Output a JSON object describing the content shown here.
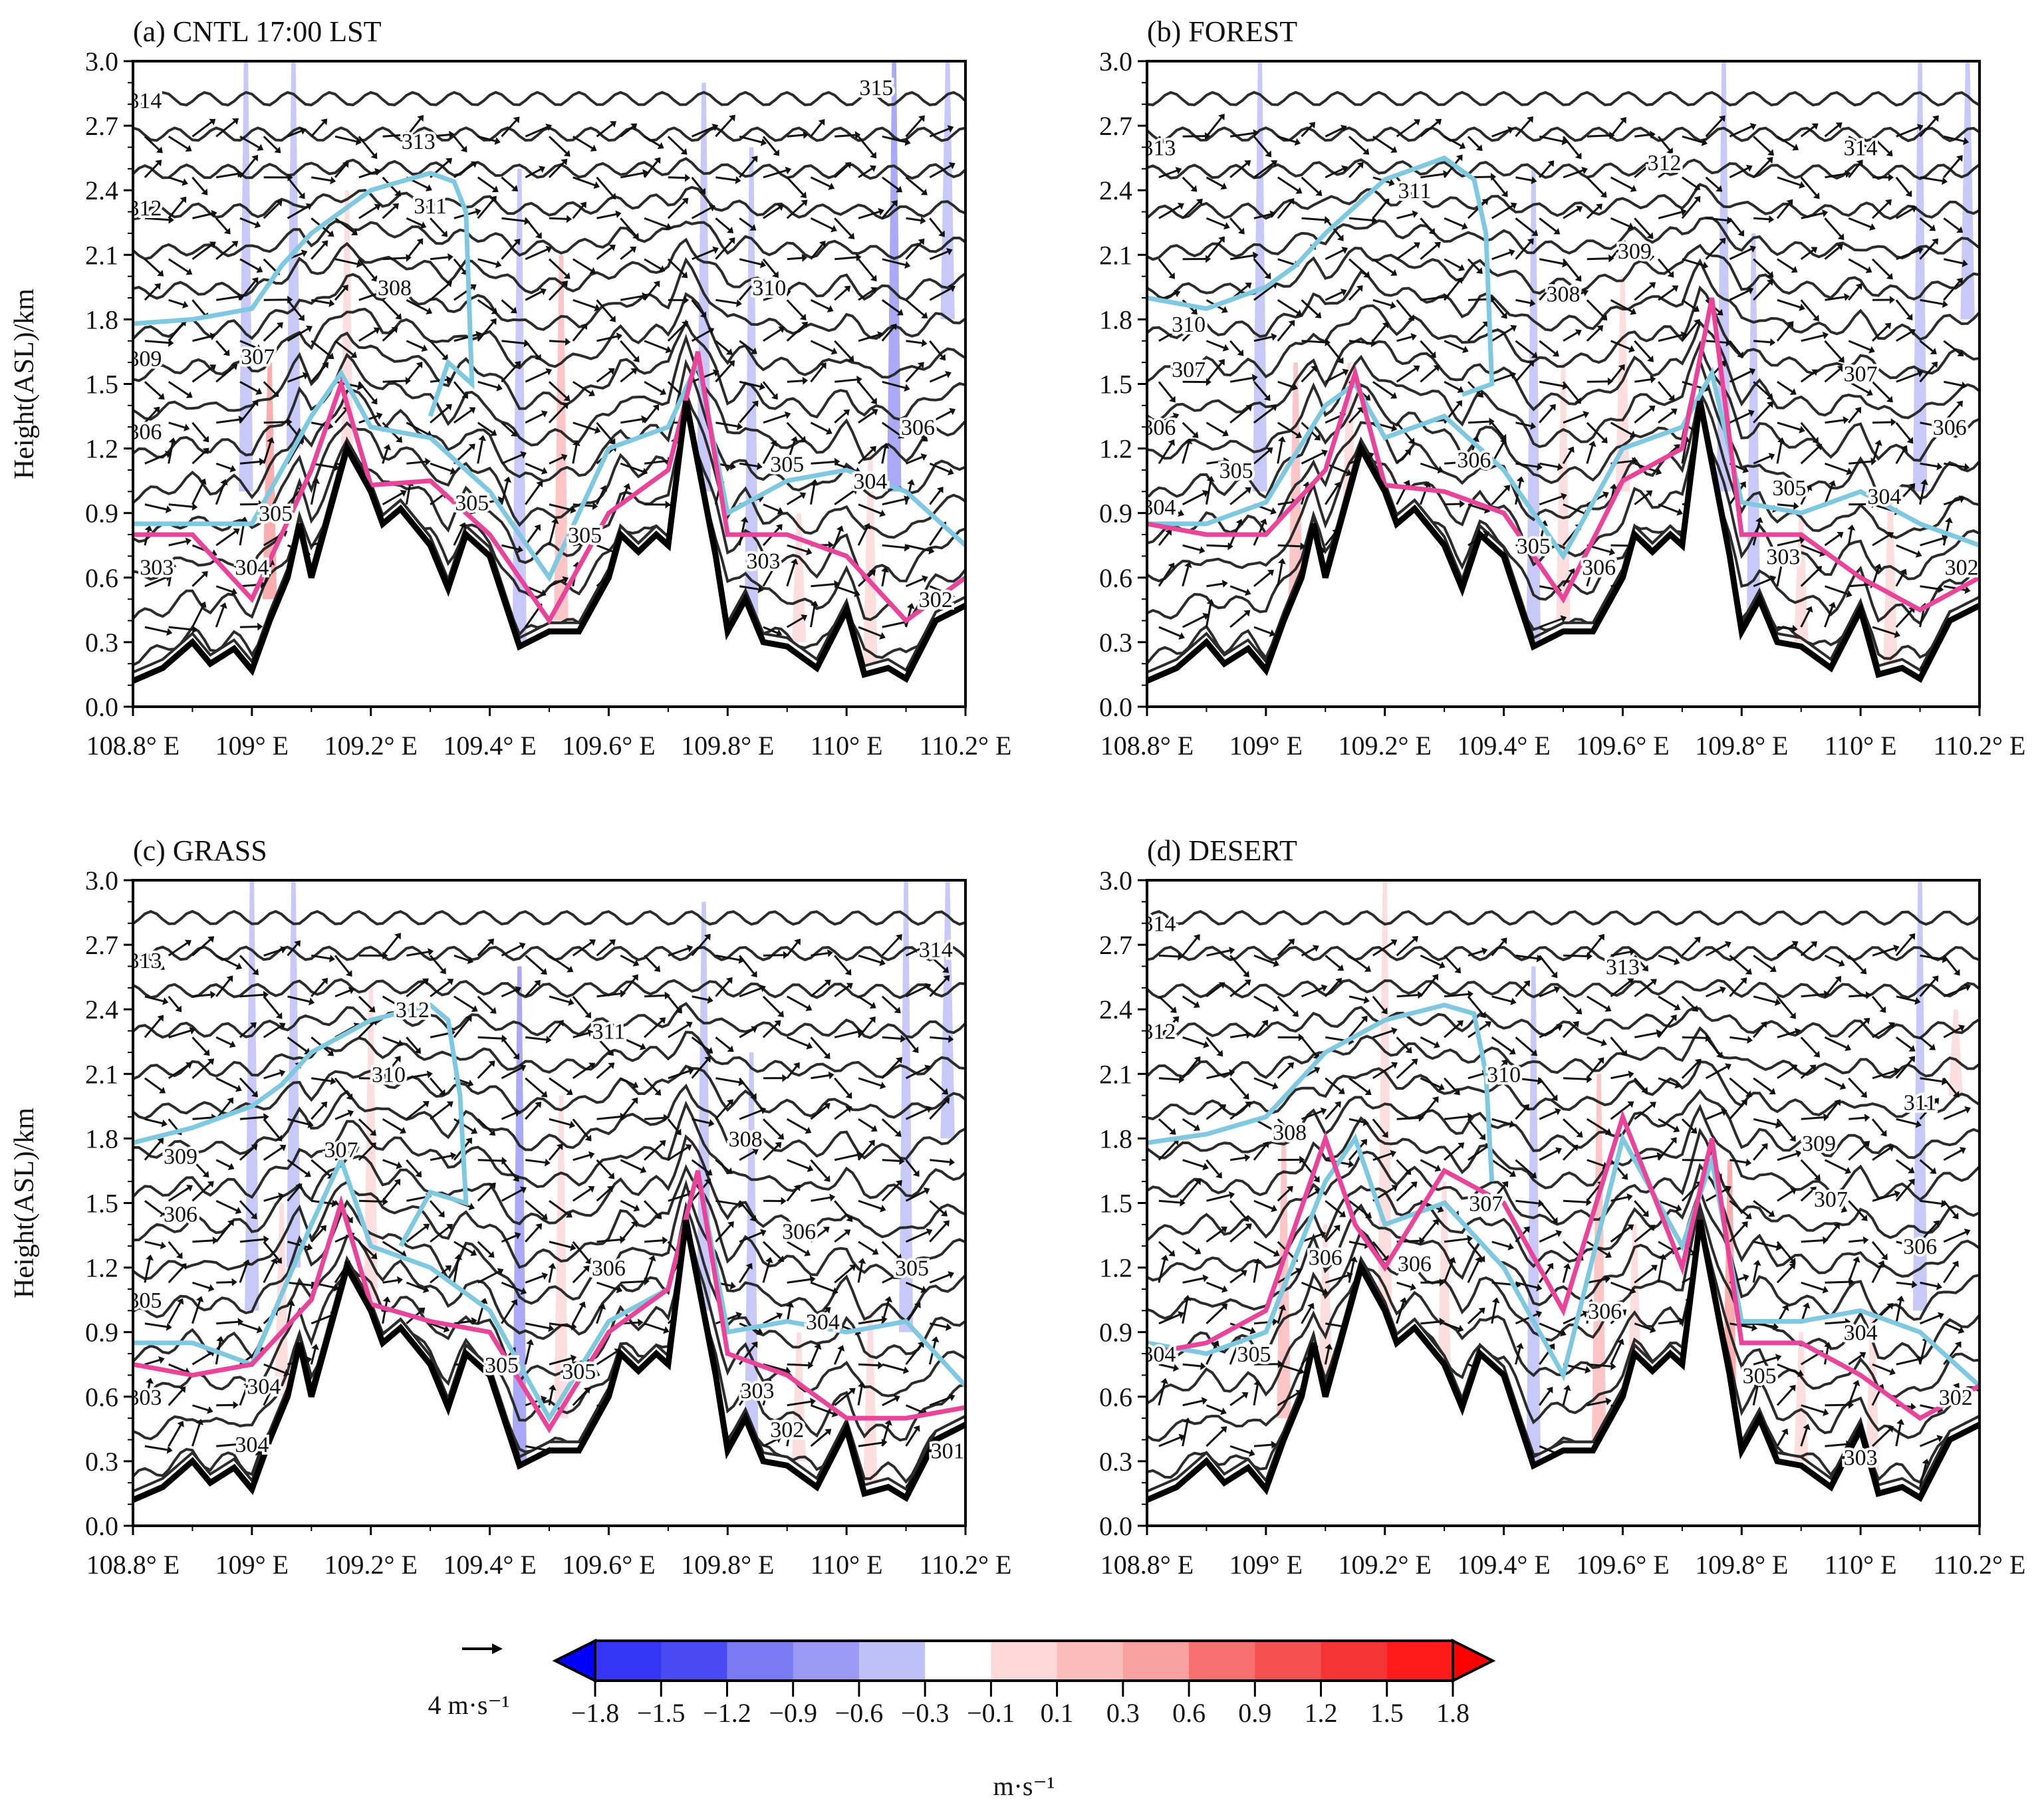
{
  "chart_data": {
    "type": "cross-section",
    "ylabel": "Height(ASL)/km",
    "ylim": [
      0,
      3.0
    ],
    "xlim": [
      108.8,
      110.2
    ],
    "yticks": [
      "0.0",
      "0.3",
      "0.6",
      "0.9",
      "1.2",
      "1.5",
      "1.8",
      "2.1",
      "2.4",
      "2.7",
      "3.0"
    ],
    "xticks": [
      "108.8° E",
      "109° E",
      "109.2° E",
      "109.4° E",
      "109.6° E",
      "109.8° E",
      "110° E",
      "110.2° E"
    ],
    "terrain": {
      "lon": [
        108.8,
        108.85,
        108.9,
        108.93,
        108.97,
        109.0,
        109.03,
        109.06,
        109.08,
        109.1,
        109.13,
        109.16,
        109.2,
        109.22,
        109.25,
        109.3,
        109.33,
        109.36,
        109.4,
        109.45,
        109.5,
        109.55,
        109.6,
        109.62,
        109.65,
        109.68,
        109.7,
        109.73,
        109.78,
        109.8,
        109.83,
        109.86,
        109.9,
        109.95,
        110.0,
        110.03,
        110.07,
        110.1,
        110.15,
        110.2
      ],
      "height": [
        0.12,
        0.18,
        0.3,
        0.2,
        0.27,
        0.17,
        0.4,
        0.6,
        0.85,
        0.6,
        0.9,
        1.2,
        1.0,
        0.85,
        0.92,
        0.75,
        0.55,
        0.8,
        0.7,
        0.28,
        0.35,
        0.35,
        0.6,
        0.8,
        0.72,
        0.8,
        0.75,
        1.42,
        0.7,
        0.35,
        0.5,
        0.3,
        0.28,
        0.18,
        0.45,
        0.15,
        0.18,
        0.13,
        0.4,
        0.47
      ]
    },
    "line_lon": [
      108.8,
      108.9,
      109.0,
      109.1,
      109.15,
      109.2,
      109.3,
      109.4,
      109.5,
      109.6,
      109.7,
      109.75,
      109.8,
      109.9,
      110.0,
      110.1,
      110.2
    ],
    "panels": [
      {
        "title": "(a) CNTL 17:00 LST",
        "cyan": [
          0.85,
          0.85,
          0.85,
          1.35,
          1.55,
          1.3,
          1.25,
          1.0,
          0.6,
          1.2,
          1.3,
          1.6,
          0.9,
          1.05,
          1.1,
          1.0,
          0.75
        ],
        "pink": [
          0.8,
          0.8,
          0.5,
          1.1,
          1.5,
          1.0,
          1.05,
          0.8,
          0.4,
          0.9,
          1.1,
          1.65,
          0.8,
          0.8,
          0.7,
          0.4,
          0.6
        ],
        "cyan_upper": [
          [
            108.8,
            1.78
          ],
          [
            108.9,
            1.8
          ],
          [
            109.0,
            1.85
          ],
          [
            109.05,
            2.05
          ],
          [
            109.1,
            2.2
          ],
          [
            109.2,
            2.4
          ],
          [
            109.3,
            2.48
          ],
          [
            109.34,
            2.44
          ],
          [
            109.36,
            2.3
          ],
          [
            109.37,
            1.5
          ],
          [
            109.33,
            1.6
          ],
          [
            109.3,
            1.35
          ]
        ],
        "shading": [
          [
            108.99,
            1.0,
            3.0,
            -0.3
          ],
          [
            109.03,
            0.5,
            1.6,
            0.9
          ],
          [
            109.07,
            1.2,
            3.0,
            -0.3
          ],
          [
            109.16,
            0.9,
            2.4,
            0.3
          ],
          [
            109.45,
            0.3,
            2.5,
            -0.3
          ],
          [
            109.52,
            0.4,
            2.1,
            0.6
          ],
          [
            109.76,
            1.0,
            2.9,
            -0.3
          ],
          [
            109.84,
            0.3,
            2.6,
            -0.3
          ],
          [
            109.92,
            0.3,
            0.9,
            0.3
          ],
          [
            110.04,
            0.2,
            1.2,
            0.3
          ],
          [
            110.08,
            1.0,
            3.0,
            -0.6
          ],
          [
            110.17,
            1.8,
            3.0,
            -0.3
          ]
        ],
        "labels": [
          [
            "314",
            108.82,
            2.82
          ],
          [
            "315",
            110.05,
            2.88
          ],
          [
            "313",
            109.28,
            2.63
          ],
          [
            "312",
            108.82,
            2.32
          ],
          [
            "311",
            109.3,
            2.33
          ],
          [
            "310",
            109.87,
            1.95
          ],
          [
            "308",
            109.24,
            1.95
          ],
          [
            "309",
            108.82,
            1.62
          ],
          [
            "307",
            109.01,
            1.63
          ],
          [
            "306",
            108.82,
            1.28
          ],
          [
            "306",
            110.12,
            1.3
          ],
          [
            "305",
            109.9,
            1.13
          ],
          [
            "304",
            110.04,
            1.05
          ],
          [
            "305",
            109.04,
            0.9
          ],
          [
            "305",
            109.37,
            0.95
          ],
          [
            "305",
            109.56,
            0.8
          ],
          [
            "303",
            108.84,
            0.65
          ],
          [
            "304",
            109.0,
            0.65
          ],
          [
            "303",
            109.86,
            0.68
          ],
          [
            "302",
            110.15,
            0.5
          ]
        ]
      },
      {
        "title": "(b) FOREST",
        "cyan": [
          0.85,
          0.85,
          0.95,
          1.4,
          1.5,
          1.25,
          1.35,
          1.1,
          0.7,
          1.2,
          1.3,
          1.55,
          0.95,
          0.9,
          1.0,
          0.85,
          0.75
        ],
        "pink": [
          0.85,
          0.8,
          0.8,
          1.1,
          1.55,
          1.0,
          1.0,
          0.9,
          0.5,
          1.05,
          1.2,
          1.9,
          0.8,
          0.8,
          0.6,
          0.45,
          0.6
        ],
        "cyan_upper": [
          [
            108.8,
            1.9
          ],
          [
            108.9,
            1.85
          ],
          [
            109.0,
            1.95
          ],
          [
            109.05,
            2.05
          ],
          [
            109.1,
            2.2
          ],
          [
            109.2,
            2.45
          ],
          [
            109.3,
            2.55
          ],
          [
            109.35,
            2.45
          ],
          [
            109.37,
            2.2
          ],
          [
            109.38,
            1.5
          ],
          [
            109.33,
            1.45
          ]
        ],
        "shading": [
          [
            108.99,
            1.0,
            3.0,
            -0.3
          ],
          [
            109.05,
            0.5,
            1.6,
            0.6
          ],
          [
            109.14,
            0.8,
            1.6,
            0.3
          ],
          [
            109.45,
            0.3,
            2.5,
            -0.3
          ],
          [
            109.5,
            0.4,
            1.6,
            0.3
          ],
          [
            109.6,
            1.0,
            2.0,
            0.3
          ],
          [
            109.77,
            1.0,
            3.0,
            -0.3
          ],
          [
            109.82,
            0.3,
            2.2,
            -0.3
          ],
          [
            109.9,
            0.3,
            0.9,
            0.3
          ],
          [
            110.05,
            0.2,
            1.0,
            0.3
          ],
          [
            110.1,
            1.0,
            3.0,
            -0.3
          ],
          [
            110.18,
            1.8,
            3.0,
            -0.3
          ]
        ],
        "labels": [
          [
            "313",
            108.82,
            2.6
          ],
          [
            "314",
            110.0,
            2.6
          ],
          [
            "312",
            109.67,
            2.53
          ],
          [
            "311",
            109.25,
            2.4
          ],
          [
            "309",
            109.62,
            2.12
          ],
          [
            "310",
            108.87,
            1.78
          ],
          [
            "308",
            109.5,
            1.92
          ],
          [
            "307",
            108.87,
            1.57
          ],
          [
            "307",
            110.0,
            1.55
          ],
          [
            "306",
            108.82,
            1.3
          ],
          [
            "306",
            110.15,
            1.3
          ],
          [
            "305",
            108.95,
            1.1
          ],
          [
            "306",
            109.35,
            1.15
          ],
          [
            "305",
            109.88,
            1.02
          ],
          [
            "304",
            110.04,
            0.98
          ],
          [
            "304",
            108.82,
            0.93
          ],
          [
            "305",
            109.45,
            0.75
          ],
          [
            "306",
            109.56,
            0.65
          ],
          [
            "303",
            109.87,
            0.7
          ],
          [
            "302",
            110.17,
            0.65
          ]
        ]
      },
      {
        "title": "(c) GRASS",
        "cyan": [
          0.85,
          0.85,
          0.75,
          1.4,
          1.7,
          1.3,
          1.2,
          1.0,
          0.5,
          0.95,
          1.1,
          1.65,
          0.9,
          0.95,
          0.9,
          0.95,
          0.65
        ],
        "pink": [
          0.75,
          0.7,
          0.75,
          1.05,
          1.5,
          1.0,
          0.95,
          0.9,
          0.45,
          0.9,
          1.1,
          1.65,
          0.8,
          0.7,
          0.5,
          0.5,
          0.55
        ],
        "cyan_upper": [
          [
            108.8,
            1.78
          ],
          [
            108.9,
            1.85
          ],
          [
            109.0,
            1.95
          ],
          [
            109.05,
            2.05
          ],
          [
            109.1,
            2.2
          ],
          [
            109.2,
            2.35
          ],
          [
            109.3,
            2.42
          ],
          [
            109.33,
            2.35
          ],
          [
            109.35,
            2.0
          ],
          [
            109.36,
            1.5
          ],
          [
            109.3,
            1.55
          ],
          [
            109.25,
            1.3
          ]
        ],
        "shading": [
          [
            109.0,
            1.0,
            3.0,
            -0.3
          ],
          [
            109.05,
            0.6,
            1.5,
            0.3
          ],
          [
            109.07,
            1.2,
            3.0,
            -0.3
          ],
          [
            109.2,
            1.0,
            2.5,
            0.3
          ],
          [
            109.45,
            0.3,
            2.6,
            -0.6
          ],
          [
            109.52,
            0.5,
            2.0,
            0.3
          ],
          [
            109.76,
            1.0,
            2.9,
            -0.3
          ],
          [
            109.84,
            0.3,
            2.2,
            -0.3
          ],
          [
            109.92,
            0.3,
            0.9,
            0.3
          ],
          [
            110.04,
            0.2,
            1.0,
            0.3
          ],
          [
            110.1,
            0.9,
            3.0,
            -0.3
          ],
          [
            110.17,
            1.8,
            3.0,
            -0.3
          ]
        ],
        "labels": [
          [
            "313",
            108.82,
            2.63
          ],
          [
            "314",
            110.15,
            2.68
          ],
          [
            "312",
            109.27,
            2.4
          ],
          [
            "311",
            109.6,
            2.3
          ],
          [
            "310",
            109.23,
            2.1
          ],
          [
            "309",
            108.88,
            1.72
          ],
          [
            "307",
            109.15,
            1.75
          ],
          [
            "308",
            109.83,
            1.8
          ],
          [
            "306",
            108.88,
            1.45
          ],
          [
            "306",
            109.92,
            1.37
          ],
          [
            "305",
            108.82,
            1.05
          ],
          [
            "305",
            110.11,
            1.2
          ],
          [
            "306",
            109.6,
            1.2
          ],
          [
            "304",
            109.96,
            0.95
          ],
          [
            "305",
            109.42,
            0.75
          ],
          [
            "305",
            109.55,
            0.72
          ],
          [
            "303",
            108.82,
            0.6
          ],
          [
            "304",
            109.02,
            0.65
          ],
          [
            "304",
            109.0,
            0.38
          ],
          [
            "303",
            109.85,
            0.63
          ],
          [
            "302",
            109.9,
            0.45
          ],
          [
            "301",
            110.17,
            0.35
          ]
        ]
      },
      {
        "title": "(d) DESERT",
        "cyan": [
          0.85,
          0.8,
          0.9,
          1.6,
          1.8,
          1.4,
          1.5,
          1.2,
          0.7,
          1.8,
          1.3,
          1.7,
          0.95,
          0.95,
          1.0,
          0.9,
          0.65
        ],
        "pink": [
          0.8,
          0.85,
          1.0,
          1.8,
          1.4,
          1.2,
          1.65,
          1.5,
          1.0,
          1.9,
          1.2,
          1.8,
          0.85,
          0.85,
          0.7,
          0.5,
          0.65
        ],
        "cyan_upper": [
          [
            108.8,
            1.78
          ],
          [
            108.9,
            1.82
          ],
          [
            109.0,
            1.9
          ],
          [
            109.05,
            2.05
          ],
          [
            109.1,
            2.2
          ],
          [
            109.2,
            2.35
          ],
          [
            109.3,
            2.42
          ],
          [
            109.35,
            2.38
          ],
          [
            109.37,
            2.1
          ],
          [
            109.38,
            1.6
          ]
        ],
        "shading": [
          [
            109.03,
            0.5,
            1.8,
            0.6
          ],
          [
            109.1,
            0.7,
            1.4,
            0.3
          ],
          [
            109.2,
            1.0,
            3.0,
            0.3
          ],
          [
            109.3,
            0.6,
            1.6,
            0.3
          ],
          [
            109.45,
            0.3,
            2.6,
            -0.3
          ],
          [
            109.56,
            0.4,
            2.1,
            0.6
          ],
          [
            109.62,
            0.6,
            1.4,
            0.3
          ],
          [
            109.78,
            0.5,
            1.7,
            0.9
          ],
          [
            109.9,
            0.3,
            0.9,
            0.3
          ],
          [
            110.02,
            0.2,
            1.0,
            0.3
          ],
          [
            110.1,
            1.0,
            3.0,
            -0.3
          ],
          [
            110.16,
            2.0,
            2.4,
            0.3
          ]
        ],
        "labels": [
          [
            "314",
            108.82,
            2.8
          ],
          [
            "313",
            109.6,
            2.6
          ],
          [
            "312",
            108.82,
            2.3
          ],
          [
            "310",
            109.4,
            2.1
          ],
          [
            "311",
            110.1,
            1.97
          ],
          [
            "309",
            109.93,
            1.78
          ],
          [
            "308",
            109.04,
            1.83
          ],
          [
            "307",
            109.95,
            1.52
          ],
          [
            "306",
            110.1,
            1.3
          ],
          [
            "307",
            109.37,
            1.5
          ],
          [
            "306",
            109.1,
            1.25
          ],
          [
            "306",
            109.25,
            1.22
          ],
          [
            "306",
            109.57,
            1.0
          ],
          [
            "305",
            108.98,
            0.8
          ],
          [
            "304",
            108.82,
            0.8
          ],
          [
            "305",
            109.83,
            0.7
          ],
          [
            "304",
            110.0,
            0.9
          ],
          [
            "303",
            110.0,
            0.32
          ],
          [
            "302",
            110.16,
            0.6
          ]
        ]
      }
    ],
    "colorbar": {
      "levels": [
        "−1.8",
        "−1.5",
        "−1.2",
        "−0.9",
        "−0.6",
        "−0.3",
        "−0.1",
        "0.1",
        "0.3",
        "0.6",
        "0.9",
        "1.2",
        "1.5",
        "1.8"
      ],
      "colors": [
        "#1f1fff",
        "#3535f5",
        "#4a4af5",
        "#7a7af2",
        "#9a9af5",
        "#c0c0f8",
        "#ffffff",
        "#fdd8d8",
        "#fbbcbc",
        "#f9a0a0",
        "#f77070",
        "#f55050",
        "#f53535",
        "#ff1a1a"
      ],
      "low_color": "#0000ff",
      "high_color": "#ff0000",
      "units": "m·s⁻¹"
    },
    "reference_vector": "4 m·s⁻¹",
    "colors": {
      "terrain": "#000000",
      "contour": "#2b2b2b",
      "cyan": "#7ec8e0",
      "pink": "#e8449a",
      "blue": "#8f8ff2",
      "red": "#f4b0b0"
    }
  }
}
